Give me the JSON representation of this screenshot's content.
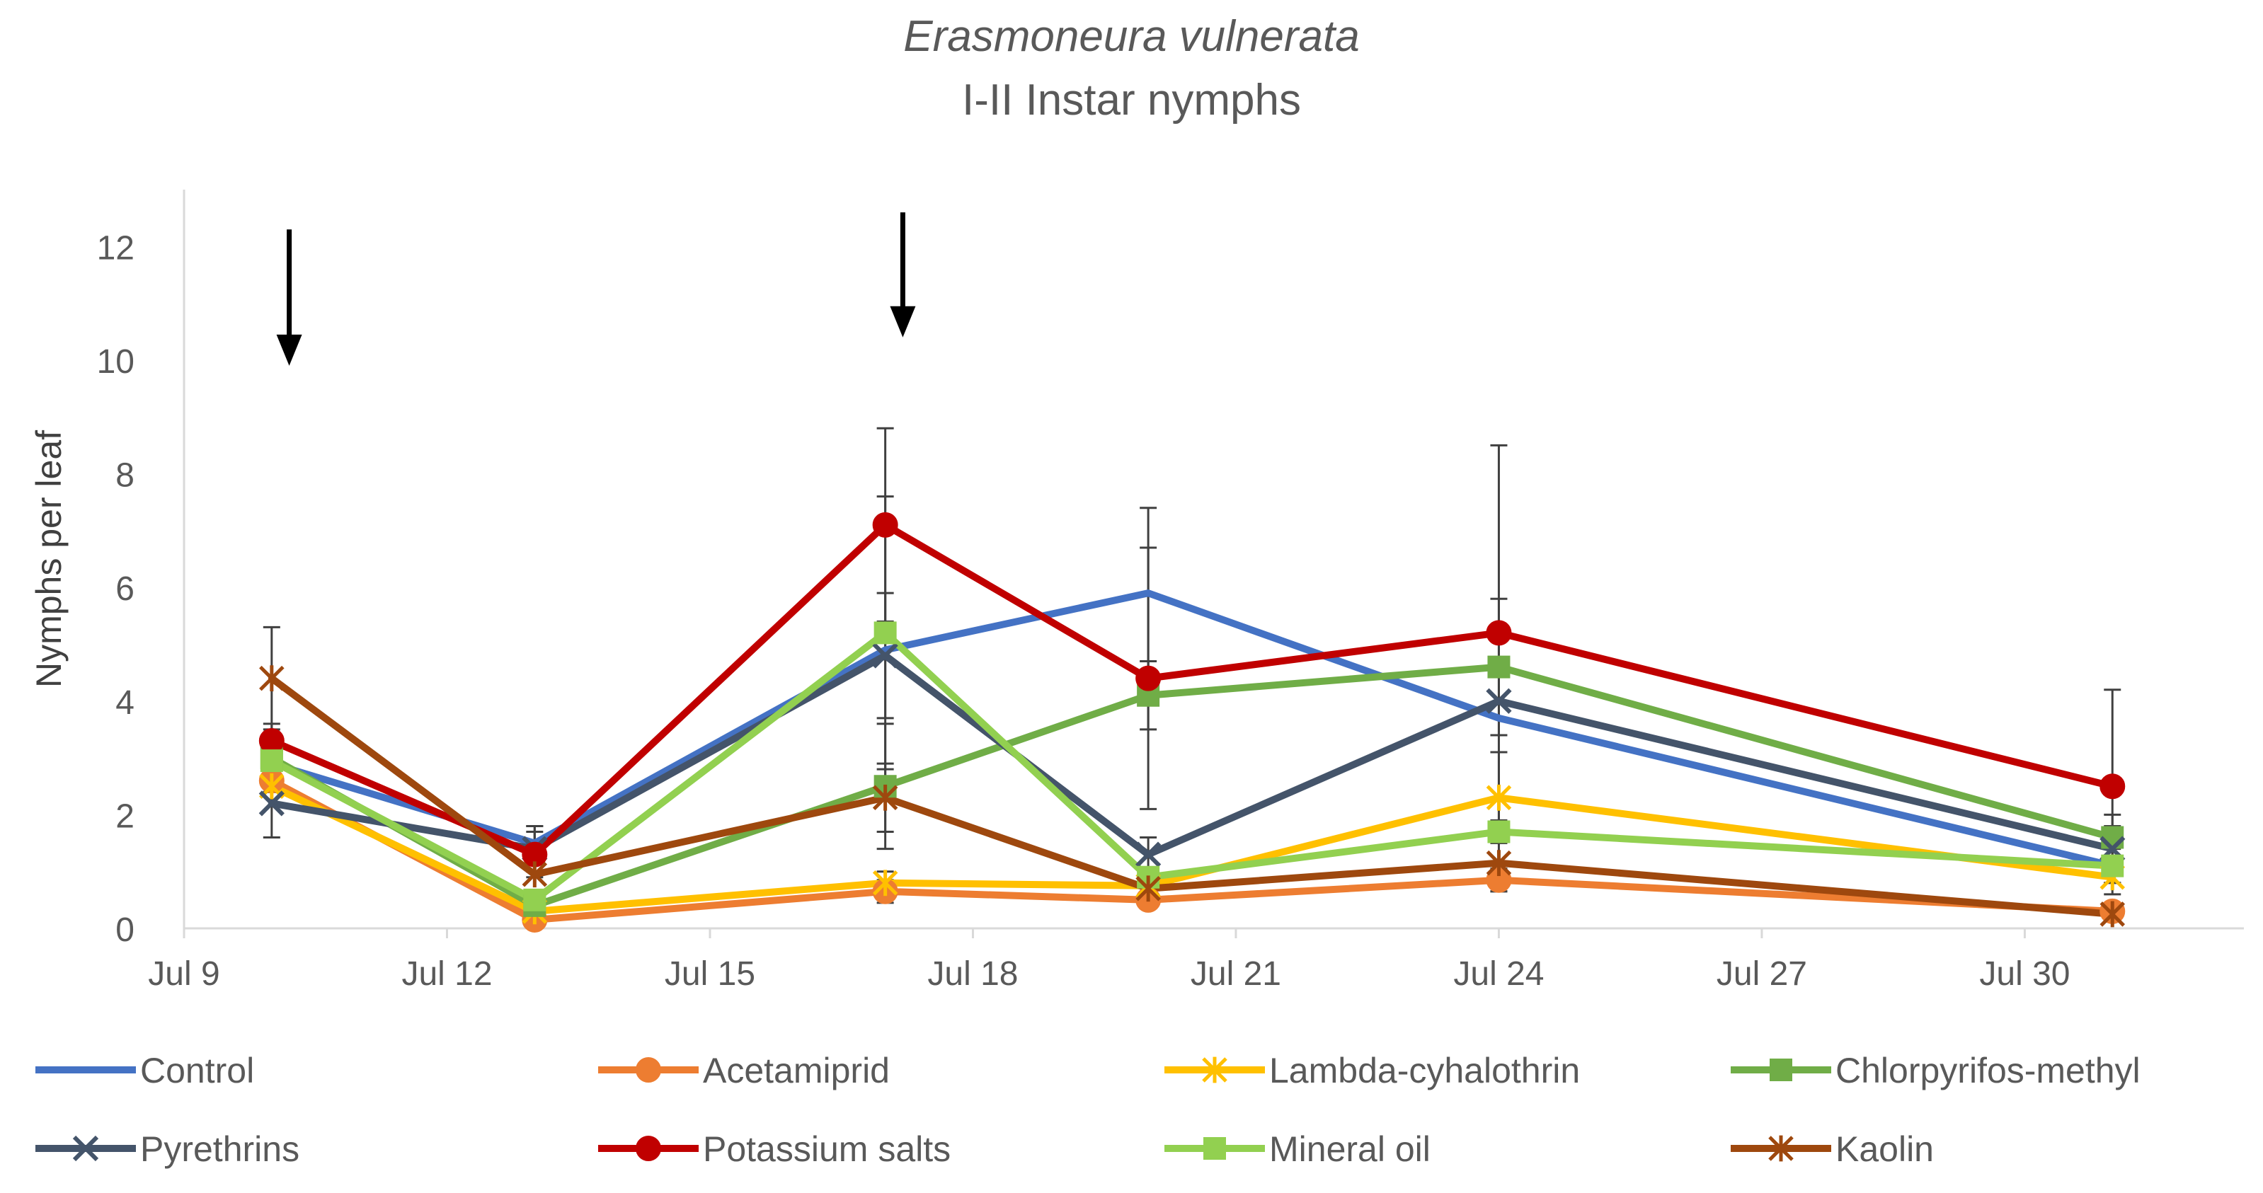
{
  "chart_data": {
    "type": "line",
    "title": "Erasmoneura vulnerata",
    "subtitle": "I-II Instar nymphs",
    "xlabel": "",
    "ylabel": "Nymphs per leaf",
    "ylim": [
      0,
      13
    ],
    "yticks": [
      "0",
      "2",
      "4",
      "6",
      "8",
      "10",
      "12"
    ],
    "xlim": [
      9,
      32.5
    ],
    "xtick_labels": [
      "Jul 9",
      "Jul 12",
      "Jul 15",
      "Jul 18",
      "Jul 21",
      "Jul 24",
      "Jul 27",
      "Jul 30"
    ],
    "xtick_values": [
      9,
      12,
      15,
      18,
      21,
      24,
      27,
      30
    ],
    "x": [
      10,
      13,
      17,
      20,
      24,
      31
    ],
    "grid": false,
    "legend_position": "bottom",
    "annotations": [
      {
        "type": "arrow-down",
        "x": 10.2,
        "y_top": 12.3,
        "y_bottom": 10
      },
      {
        "type": "arrow-down",
        "x": 17.2,
        "y_top": 12.6,
        "y_bottom": 10.5
      }
    ],
    "series": [
      {
        "name": "Control",
        "color": "#4472C4",
        "marker": "none",
        "values": [
          2.9,
          1.5,
          4.9,
          5.9,
          3.7,
          1.1
        ],
        "err": [
          0.5,
          0.3,
          0,
          1.5,
          0,
          0
        ]
      },
      {
        "name": "Acetamiprid",
        "color": "#ED7D31",
        "marker": "circle",
        "values": [
          2.6,
          0.15,
          0.65,
          0.5,
          0.85,
          0.3
        ],
        "err": [
          0,
          0,
          0.2,
          0.15,
          0.2,
          0.1
        ]
      },
      {
        "name": "Lambda-cyhalothrin",
        "color": "#FFC000",
        "marker": "star",
        "values": [
          2.5,
          0.3,
          0.8,
          0.75,
          2.3,
          0.9
        ],
        "err": [
          0,
          0,
          0.2,
          0.1,
          0.8,
          0.3
        ]
      },
      {
        "name": "Chlorpyrifos-methyl",
        "color": "#70AD47",
        "marker": "square",
        "values": [
          3.0,
          0.4,
          2.5,
          4.1,
          4.6,
          1.6
        ],
        "err": [
          0.6,
          0,
          1.1,
          0.6,
          1.2,
          0.4
        ]
      },
      {
        "name": "Pyrethrins",
        "color": "#44546A",
        "marker": "x",
        "values": [
          2.2,
          1.4,
          4.8,
          1.3,
          4.0,
          1.4
        ],
        "err": [
          0.6,
          0.4,
          1.1,
          0.3,
          0,
          0.4
        ]
      },
      {
        "name": "Potassium salts",
        "color": "#C00000",
        "marker": "circle",
        "values": [
          3.3,
          1.3,
          7.1,
          4.4,
          5.2,
          2.5
        ],
        "err": [
          0,
          0.4,
          1.7,
          2.3,
          3.3,
          1.7
        ]
      },
      {
        "name": "Mineral oil",
        "color": "#92D050",
        "marker": "square",
        "values": [
          2.95,
          0.5,
          5.2,
          0.9,
          1.7,
          1.1
        ],
        "err": [
          0,
          0,
          2.4,
          0,
          0,
          0.3
        ]
      },
      {
        "name": "Kaolin",
        "color": "#9E480E",
        "marker": "star",
        "values": [
          4.4,
          0.95,
          2.3,
          0.7,
          1.15,
          0.25
        ],
        "err": [
          0.9,
          0,
          0.6,
          0,
          0.5,
          0.1
        ]
      }
    ],
    "axis_color": "#D9D9D9",
    "text_color": "#595959",
    "error_bar_color": "#404040",
    "arrow_color": "#000000"
  }
}
